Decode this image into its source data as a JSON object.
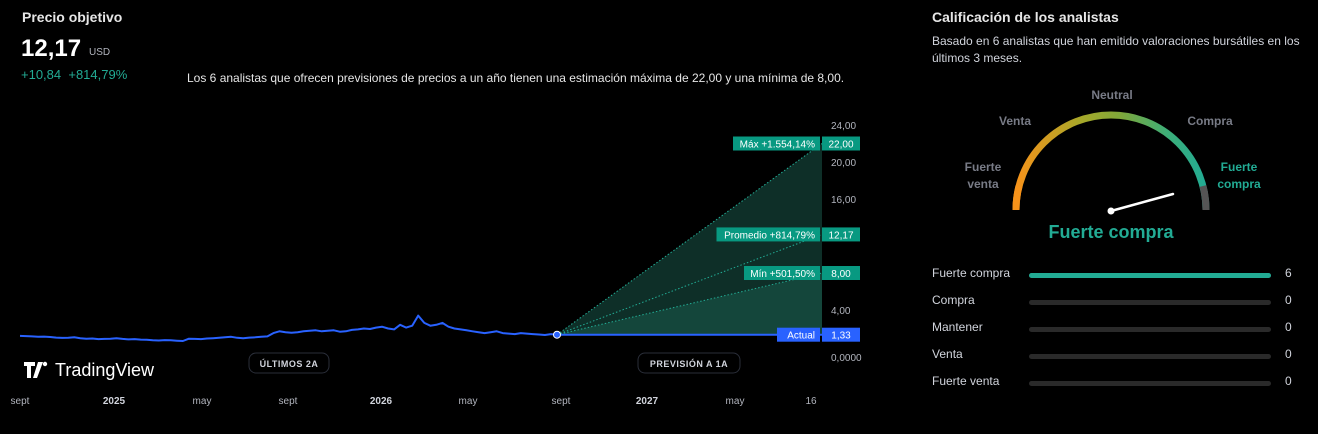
{
  "left": {
    "title": "Precio objetivo",
    "price": "12,17",
    "currency": "USD",
    "change_abs": "+10,84",
    "change_pct": "+814,79%",
    "summary": "Los 6 analistas que ofrecen previsiones de precios a un año tienen una estimación máxima de 22,00 y una mínima de 8,00."
  },
  "chart_data": {
    "type": "line",
    "y_ticks": [
      "24,00",
      "20,00",
      "16,00",
      "4,00",
      "0,0000"
    ],
    "x_ticks": [
      {
        "label": "sept",
        "bold": false
      },
      {
        "label": "2025",
        "bold": true
      },
      {
        "label": "may",
        "bold": false
      },
      {
        "label": "sept",
        "bold": false
      },
      {
        "label": "2026",
        "bold": true
      },
      {
        "label": "may",
        "bold": false
      },
      {
        "label": "sept",
        "bold": false
      },
      {
        "label": "2027",
        "bold": true
      },
      {
        "label": "may",
        "bold": false
      },
      {
        "label": "16",
        "bold": false
      }
    ],
    "ylim": [
      0,
      24
    ],
    "history": [
      1.2,
      1.18,
      1.15,
      1.1,
      1.12,
      1.08,
      1.02,
      0.98,
      1.0,
      1.05,
      0.95,
      0.9,
      0.92,
      0.85,
      0.88,
      0.9,
      0.95,
      0.88,
      0.82,
      0.85,
      0.8,
      0.78,
      0.72,
      0.7,
      0.75,
      0.72,
      0.68,
      0.65,
      0.9,
      0.88,
      0.85,
      0.92,
      0.95,
      1.0,
      1.05,
      1.1,
      1.0,
      0.95,
      1.02,
      1.05,
      1.1,
      1.15,
      1.5,
      1.7,
      1.6,
      1.55,
      1.6,
      1.7,
      1.75,
      1.8,
      1.7,
      1.75,
      1.8,
      1.65,
      1.7,
      1.85,
      1.9,
      2.0,
      1.95,
      2.1,
      2.2,
      2.0,
      1.9,
      2.4,
      2.1,
      2.3,
      3.4,
      2.6,
      2.3,
      2.4,
      2.6,
      2.2,
      2.0,
      1.9,
      1.8,
      1.7,
      1.6,
      1.5,
      1.6,
      1.7,
      1.5,
      1.45,
      1.4,
      1.5,
      1.45,
      1.4,
      1.35,
      1.3,
      1.4,
      1.33
    ],
    "forecast": {
      "actual": {
        "label": "Actual",
        "value": "1,33"
      },
      "max": {
        "label": "Máx +1.554,14%",
        "value": "22,00"
      },
      "avg": {
        "label": "Promedio +814,79%",
        "value": "12,17"
      },
      "min": {
        "label": "Mín +501,50%",
        "value": "8,00"
      }
    },
    "pills": {
      "history": "ÚLTIMOS 2A",
      "forecast": "PREVISIÓN A 1A"
    },
    "brand": "TradingView",
    "colors": {
      "line": "#2962ff",
      "accent": "#089981"
    }
  },
  "right": {
    "title": "Calificación de los analistas",
    "subtitle": "Basado en 6 analistas que han emitido valoraciones bursátiles en los últimos 3 meses.",
    "gauge_labels": {
      "strong_sell_1": "Fuerte",
      "strong_sell_2": "venta",
      "sell": "Venta",
      "neutral": "Neutral",
      "buy": "Compra",
      "strong_buy_1": "Fuerte",
      "strong_buy_2": "compra"
    },
    "rating": "Fuerte compra",
    "rows": [
      {
        "label": "Fuerte compra",
        "count": "6",
        "fraction": 1.0
      },
      {
        "label": "Compra",
        "count": "0",
        "fraction": 0
      },
      {
        "label": "Mantener",
        "count": "0",
        "fraction": 0
      },
      {
        "label": "Venta",
        "count": "0",
        "fraction": 0
      },
      {
        "label": "Fuerte venta",
        "count": "0",
        "fraction": 0
      }
    ]
  }
}
